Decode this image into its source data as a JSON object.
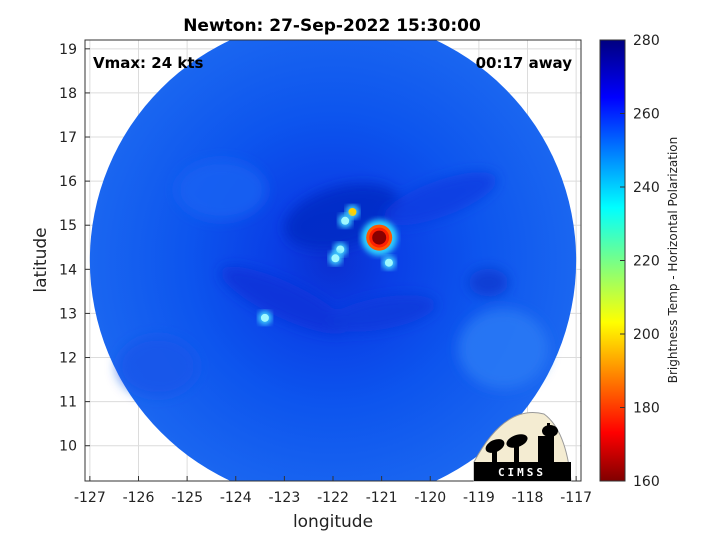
{
  "title": "Newton: 27-Sep-2022 15:30:00",
  "vmax_text": "Vmax: 24 kts",
  "time_away_text": "00:17 away",
  "xlabel": "longitude",
  "ylabel": "latitude",
  "colorbar_label": "Brightness Temp - Horizontal Polarization",
  "logo_text": "CIMSS",
  "chart_data": {
    "type": "heatmap",
    "title": "Newton: 27-Sep-2022 15:30:00",
    "xlabel": "longitude",
    "ylabel": "latitude",
    "xlim": [
      -127.1,
      -116.9
    ],
    "ylim": [
      9.2,
      19.2
    ],
    "x_ticks": [
      -127,
      -126,
      -125,
      -124,
      -123,
      -122,
      -121,
      -120,
      -119,
      -118,
      -117
    ],
    "y_ticks": [
      10,
      11,
      12,
      13,
      14,
      15,
      16,
      17,
      18,
      19
    ],
    "grid": true,
    "colorbar": {
      "label": "Brightness Temp - Horizontal Polarization",
      "range": [
        160,
        280
      ],
      "ticks": [
        160,
        180,
        200,
        220,
        240,
        260,
        280
      ],
      "colormap": "jet"
    },
    "swath_center": [
      -122.0,
      14.2
    ],
    "swath_radius_deg": 5.0,
    "cold_features": [
      {
        "lon": -121.05,
        "lat": 14.72,
        "tb": 165
      },
      {
        "lon": -121.6,
        "lat": 15.3,
        "tb": 215
      },
      {
        "lon": -121.75,
        "lat": 15.1,
        "tb": 220
      },
      {
        "lon": -121.85,
        "lat": 14.45,
        "tb": 230
      },
      {
        "lon": -121.95,
        "lat": 14.25,
        "tb": 232
      },
      {
        "lon": -123.4,
        "lat": 12.9,
        "tb": 235
      },
      {
        "lon": -120.85,
        "lat": 14.15,
        "tb": 240
      }
    ]
  }
}
